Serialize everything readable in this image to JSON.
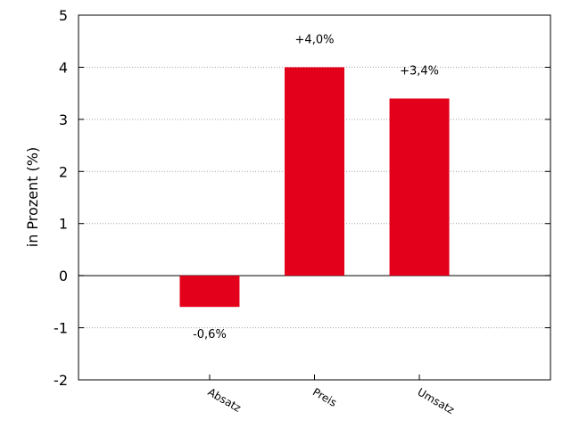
{
  "chart_data": {
    "type": "bar",
    "categories": [
      "Absatz",
      "Preis",
      "Umsatz"
    ],
    "values": [
      -0.6,
      4.0,
      3.4
    ],
    "data_labels": [
      "-0,6%",
      "+4,0%",
      "+3,4%"
    ],
    "title": "",
    "xlabel": "",
    "ylabel": "in Prozent (%)",
    "ylim": [
      -2,
      5
    ],
    "yticks": [
      -2,
      -1,
      0,
      1,
      2,
      3,
      4,
      5
    ],
    "ytick_labels": [
      "-2",
      "-1",
      "0",
      "1",
      "2",
      "3",
      "4",
      "5"
    ],
    "grid": "horizontal dotted",
    "bar_color": "#e2001a",
    "legend": "none"
  }
}
